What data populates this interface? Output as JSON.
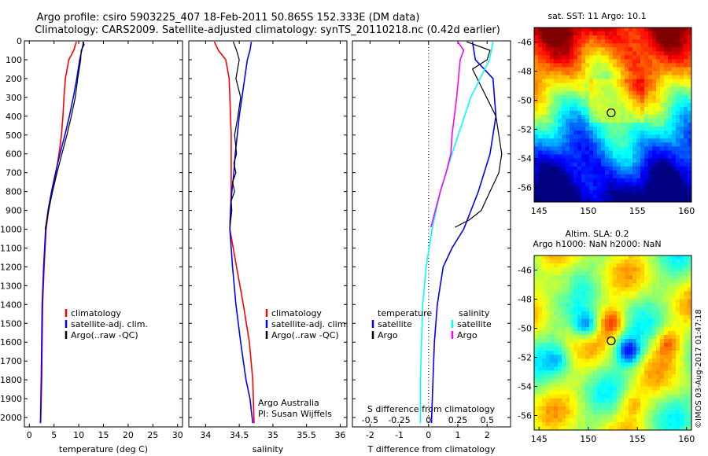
{
  "header": {
    "line1": "Argo profile: csiro 5903225_407 18-Feb-2011 50.865S 152.333E (DM data)",
    "line2": "Climatology: CARS2009. Satellite-adjusted climatology: synTS_20110218.nc (0.42d earlier)"
  },
  "depth_ticks": [
    0,
    100,
    200,
    300,
    400,
    500,
    600,
    700,
    800,
    900,
    1000,
    1100,
    1200,
    1300,
    1400,
    1500,
    1600,
    1700,
    1800,
    1900,
    2000
  ],
  "panels": {
    "temperature": {
      "xlabel": "temperature (deg C)",
      "xticks": [
        "0",
        "5",
        "10",
        "15",
        "20",
        "25",
        "30"
      ],
      "legend": [
        "climatology",
        "satellite-adj. clim.",
        "Argo(..raw -QC)"
      ]
    },
    "salinity": {
      "xlabel": "salinity",
      "xticks": [
        "34",
        "34.5",
        "35",
        "35.5",
        "36"
      ],
      "legend": [
        "climatology",
        "satellite-adj. clim.",
        "Argo(..raw -QC)"
      ],
      "note_line1": "Argo Australia",
      "note_line2": "PI: Susan Wijffels"
    },
    "difference": {
      "top_xlabel": "S difference from climatology",
      "top_xticks": [
        "-0.5",
        "-0.25",
        "0",
        "0.25",
        "0.5"
      ],
      "xlabel": "T difference from climatology",
      "xticks": [
        "-2",
        "-1",
        "0",
        "1",
        "2"
      ],
      "legend_t_title": "temperature",
      "legend_s_title": "salinity",
      "legend_t": [
        "satellite",
        "Argo"
      ],
      "legend_s": [
        "satellite",
        "Argo"
      ]
    }
  },
  "maps": {
    "sst": {
      "title": "sat. SST: 11 Argo: 10.1",
      "yticks": [
        "-46",
        "-48",
        "-50",
        "-52",
        "-54",
        "-56"
      ],
      "xticks": [
        "145",
        "150",
        "155",
        "160"
      ]
    },
    "sla": {
      "title1": "Altim. SLA: 0.2",
      "title2": "Argo h1000: NaN h2000: NaN",
      "yticks": [
        "-46",
        "-48",
        "-50",
        "-52",
        "-54",
        "-56"
      ],
      "xticks": [
        "145",
        "150",
        "155",
        "160"
      ]
    }
  },
  "credit": "©IMOS 03-Aug-2017 01:47:18",
  "colors": {
    "climatology": "#ff0000",
    "satellite": "#0000ff",
    "argo": "#000000",
    "sat_salinity": "#00ffff",
    "argo_salinity": "#ff00ff"
  },
  "chart_data": [
    {
      "type": "line",
      "name": "temperature",
      "xlabel": "temperature (deg C)",
      "ylabel": "",
      "xlim": [
        -1,
        31
      ],
      "ylim": [
        2050,
        0
      ],
      "series": [
        {
          "name": "climatology",
          "x": [
            9.5,
            9.0,
            8.0,
            7.3,
            7.0,
            6.8,
            6.5,
            6.0,
            5.4,
            4.6,
            3.9,
            3.4,
            3.0,
            2.7,
            2.5,
            2.3
          ],
          "y": [
            5,
            50,
            100,
            200,
            300,
            400,
            500,
            600,
            700,
            800,
            900,
            1000,
            1200,
            1400,
            1800,
            2030
          ]
        },
        {
          "name": "satellite-adj. clim.",
          "x": [
            11.0,
            10.6,
            10.2,
            9.6,
            8.9,
            8.1,
            7.2,
            6.2,
            5.3,
            4.5,
            3.8,
            3.3,
            2.9,
            2.6,
            2.4,
            2.25
          ],
          "y": [
            5,
            50,
            100,
            200,
            300,
            400,
            500,
            600,
            700,
            800,
            900,
            1000,
            1200,
            1400,
            1800,
            2030
          ]
        },
        {
          "name": "Argo(..raw -QC)",
          "x": [
            10.8,
            11.1,
            10.5,
            10.4,
            9.8,
            9.3,
            8.5,
            7.6,
            6.6,
            5.6,
            4.7,
            3.9,
            3.2
          ],
          "y": [
            5,
            20,
            50,
            100,
            200,
            300,
            400,
            500,
            600,
            700,
            800,
            900,
            1000
          ]
        }
      ]
    },
    {
      "type": "line",
      "name": "salinity",
      "xlabel": "salinity",
      "ylabel": "",
      "xlim": [
        33.75,
        36.1
      ],
      "ylim": [
        2050,
        0
      ],
      "series": [
        {
          "name": "climatology",
          "x": [
            34.13,
            34.19,
            34.3,
            34.35,
            34.36,
            34.37,
            34.38,
            34.38,
            34.38,
            34.38,
            34.37,
            34.36,
            34.46,
            34.56,
            34.65,
            34.7,
            34.72
          ],
          "y": [
            5,
            50,
            100,
            200,
            300,
            400,
            500,
            600,
            700,
            800,
            900,
            1000,
            1200,
            1400,
            1600,
            1800,
            2030
          ]
        },
        {
          "name": "satellite-adj. clim.",
          "x": [
            34.68,
            34.66,
            34.62,
            34.58,
            34.54,
            34.5,
            34.47,
            34.44,
            34.42,
            34.39,
            34.37,
            34.36,
            34.4,
            34.45,
            34.52,
            34.6,
            34.66,
            34.7
          ],
          "y": [
            5,
            50,
            100,
            200,
            300,
            400,
            500,
            600,
            700,
            800,
            900,
            1000,
            1200,
            1400,
            1600,
            1800,
            1900,
            2030
          ]
        },
        {
          "name": "Argo(..raw -QC)",
          "x": [
            34.41,
            34.46,
            34.5,
            34.45,
            34.52,
            34.48,
            34.43,
            34.46,
            34.42,
            34.45,
            34.4,
            34.43,
            34.38,
            34.39,
            34.36
          ],
          "y": [
            5,
            50,
            100,
            200,
            300,
            400,
            500,
            600,
            650,
            700,
            750,
            800,
            850,
            900,
            990
          ]
        }
      ]
    },
    {
      "type": "line",
      "name": "difference",
      "xlabel": "T difference from climatology",
      "top_xlabel": "S difference from climatology",
      "xlim": [
        -2.6,
        2.8
      ],
      "top_xlim": [
        -0.65,
        0.7
      ],
      "ylim": [
        2050,
        0
      ],
      "series": [
        {
          "name": "temperature satellite",
          "axis": "T",
          "x": [
            1.5,
            1.6,
            2.2,
            2.3,
            2.1,
            1.7,
            1.2,
            0.8,
            0.5,
            0.3,
            0.2,
            0.15,
            0.1
          ],
          "y": [
            5,
            100,
            200,
            400,
            600,
            800,
            1000,
            1100,
            1200,
            1400,
            1600,
            1800,
            2030
          ]
        },
        {
          "name": "temperature Argo",
          "axis": "T",
          "x": [
            1.3,
            2.1,
            2.0,
            1.5,
            2.3,
            2.5,
            2.4,
            2.1,
            1.8,
            1.4,
            0.9
          ],
          "y": [
            5,
            50,
            100,
            150,
            400,
            600,
            700,
            800,
            900,
            950,
            990
          ]
        },
        {
          "name": "salinity satellite",
          "axis": "S",
          "x": [
            0.55,
            0.52,
            0.36,
            0.2,
            0.1,
            0.03,
            -0.02,
            -0.05,
            -0.06,
            -0.07,
            -0.07
          ],
          "y": [
            5,
            100,
            300,
            600,
            800,
            1000,
            1200,
            1400,
            1600,
            1800,
            2030
          ]
        },
        {
          "name": "salinity Argo",
          "axis": "S",
          "x": [
            0.25,
            0.3,
            0.27,
            0.24,
            0.2,
            0.19,
            0.15,
            0.1,
            0.02
          ],
          "y": [
            5,
            50,
            100,
            300,
            500,
            600,
            700,
            800,
            990
          ]
        }
      ]
    },
    {
      "type": "heatmap",
      "name": "sat. SST",
      "xlim": [
        144.5,
        160.5
      ],
      "ylim": [
        -57,
        -45
      ],
      "marker": {
        "lon": 152.333,
        "lat": -50.865
      }
    },
    {
      "type": "heatmap",
      "name": "Altim. SLA",
      "xlim": [
        144.5,
        160.5
      ],
      "ylim": [
        -57,
        -45
      ],
      "marker": {
        "lon": 152.333,
        "lat": -50.865
      }
    }
  ]
}
